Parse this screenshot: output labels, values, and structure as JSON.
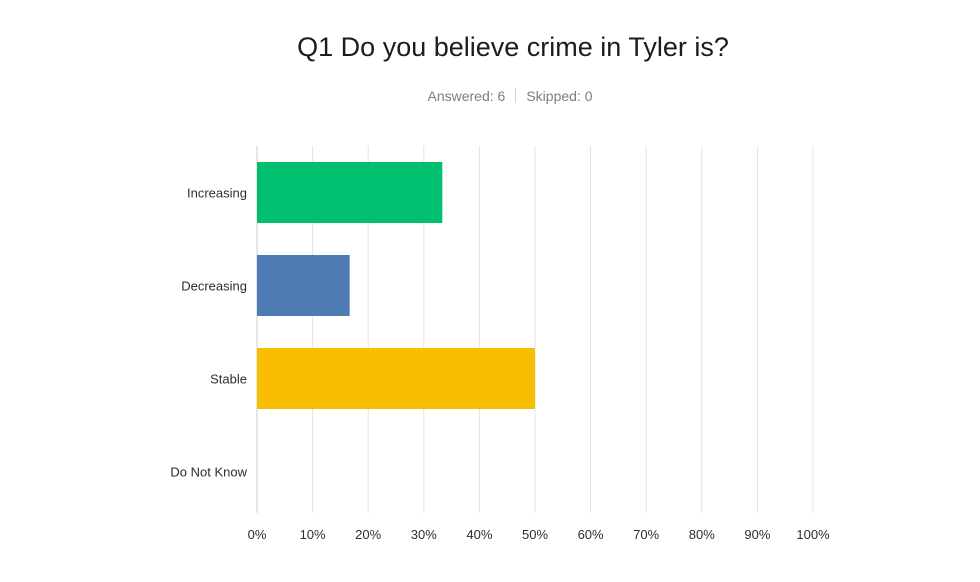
{
  "colors": {
    "increasing": "#00bf6f",
    "decreasing": "#507cb6",
    "stable": "#f9be00",
    "do_not_know": "#6bc8cd",
    "grid": "#e4e4e4",
    "axis": "#cfcfcf"
  },
  "header": {
    "title": "Q1 Do you believe crime in Tyler is?",
    "answered": "Answered: 6",
    "skipped": "Skipped: 0"
  },
  "chart_data": {
    "type": "bar",
    "orientation": "horizontal",
    "categories": [
      "Increasing",
      "Decreasing",
      "Stable",
      "Do Not Know"
    ],
    "values": [
      33.33,
      16.67,
      50,
      0
    ],
    "xlim": [
      0,
      100
    ],
    "xticks": [
      0,
      10,
      20,
      30,
      40,
      50,
      60,
      70,
      80,
      90,
      100
    ],
    "tick_labels": [
      "0%",
      "10%",
      "20%",
      "30%",
      "40%",
      "50%",
      "60%",
      "70%",
      "80%",
      "90%",
      "100%"
    ],
    "grid": true
  }
}
